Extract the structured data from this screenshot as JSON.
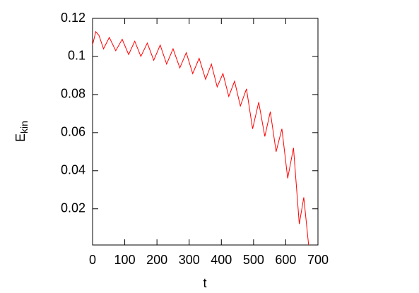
{
  "chart_data": {
    "type": "line",
    "x_label": "t",
    "y_label": {
      "main": "E",
      "sub": "kin"
    },
    "xlim": [
      0,
      700
    ],
    "ylim": [
      0.001,
      0.12
    ],
    "xticks": [
      0,
      100,
      200,
      300,
      400,
      500,
      600,
      700
    ],
    "yticks": [
      0.02,
      0.04,
      0.06,
      0.08,
      0.1,
      0.12
    ],
    "series": [
      {
        "color": "#ff0000",
        "x": [
          0,
          10,
          20,
          34,
          52,
          72,
          92,
          112,
          131,
          150,
          170,
          190,
          210,
          230,
          250,
          271,
          291,
          311,
          331,
          351,
          369,
          387,
          405,
          423,
          441,
          459,
          478,
          497,
          516,
          535,
          552,
          570,
          588,
          606,
          624,
          642,
          656,
          671
        ],
        "values": [
          0.106,
          0.113,
          0.111,
          0.104,
          0.11,
          0.103,
          0.109,
          0.101,
          0.108,
          0.1,
          0.107,
          0.098,
          0.106,
          0.096,
          0.104,
          0.094,
          0.102,
          0.091,
          0.099,
          0.088,
          0.096,
          0.084,
          0.091,
          0.079,
          0.087,
          0.074,
          0.083,
          0.062,
          0.076,
          0.058,
          0.071,
          0.05,
          0.062,
          0.036,
          0.052,
          0.012,
          0.026,
          0.001
        ]
      }
    ]
  }
}
